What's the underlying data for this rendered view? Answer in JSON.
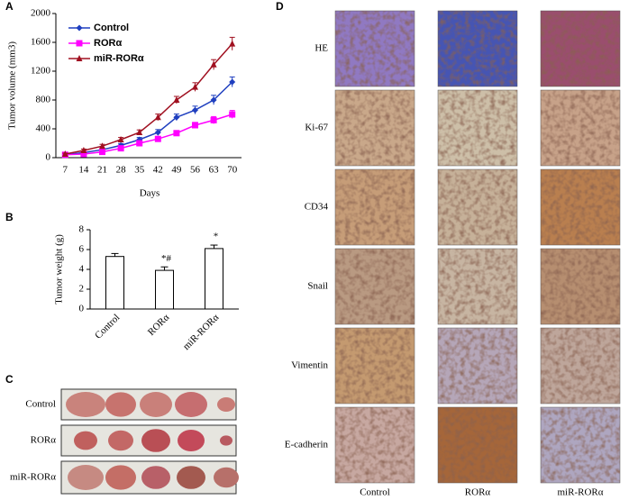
{
  "chart_data": [
    {
      "type": "line",
      "panel": "A",
      "y_label": "Tumor volume (mm3)",
      "x_label": "Days",
      "categories": [
        "7",
        "14",
        "21",
        "28",
        "35",
        "42",
        "49",
        "56",
        "63",
        "70"
      ],
      "ylim": [
        0,
        2000
      ],
      "yticks": [
        0,
        400,
        800,
        1200,
        1600,
        2000
      ],
      "series": [
        {
          "name": "Control",
          "color": "#1f3fbf",
          "marker": "diamond",
          "values": [
            40,
            70,
            110,
            170,
            250,
            350,
            560,
            660,
            800,
            1050
          ],
          "errors": [
            10,
            15,
            20,
            25,
            30,
            40,
            45,
            55,
            65,
            70
          ]
        },
        {
          "name": "RORα",
          "color": "#ff00ff",
          "marker": "square",
          "values": [
            40,
            50,
            80,
            130,
            200,
            260,
            340,
            450,
            520,
            600
          ],
          "errors": [
            10,
            12,
            15,
            20,
            25,
            30,
            35,
            40,
            50,
            55
          ]
        },
        {
          "name": "miR-RORα",
          "color": "#a01020",
          "marker": "triangle",
          "values": [
            50,
            100,
            160,
            250,
            350,
            560,
            800,
            980,
            1290,
            1580
          ],
          "errors": [
            12,
            20,
            25,
            30,
            35,
            45,
            50,
            60,
            70,
            90
          ]
        }
      ]
    },
    {
      "type": "bar",
      "panel": "B",
      "y_label": "Tumor weight (g)",
      "categories": [
        "Control",
        "RORα",
        "miR-RORα"
      ],
      "values": [
        5.3,
        3.9,
        6.1
      ],
      "errors": [
        0.3,
        0.35,
        0.35
      ],
      "significance": [
        null,
        "*#",
        "*"
      ],
      "color": "#ffffff",
      "ylim": [
        0,
        8
      ],
      "yticks": [
        0,
        2,
        4,
        6,
        8
      ]
    }
  ],
  "photos": {
    "panel": "C",
    "rows": [
      "Control",
      "RORα",
      "miR-RORα"
    ]
  },
  "ihc": {
    "panel": "D",
    "rows": [
      "HE",
      "Ki-67",
      "CD34",
      "Snail",
      "Vimentin",
      "E-cadherin"
    ],
    "columns": [
      "Control",
      "RORα",
      "miR-RORα"
    ]
  }
}
